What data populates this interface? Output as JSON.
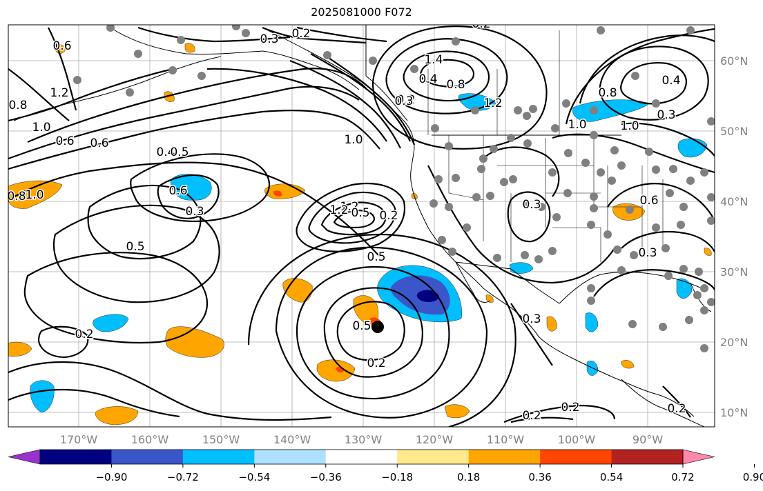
{
  "title": "2025081000 F072",
  "x_axis_labels": [
    "170°W",
    "160°W",
    "150°W",
    "140°W",
    "130°W",
    "120°W",
    "110°W",
    "100°W",
    "90°W"
  ],
  "y_axis_labels": [
    "60°N",
    "50°N",
    "40°N",
    "30°N",
    "20°N",
    "10°N"
  ],
  "colorbar": {
    "tick_labels": [
      "−0.90",
      "−0.72",
      "−0.54",
      "−0.36",
      "−0.18",
      "0.18",
      "0.36",
      "0.54",
      "0.72",
      "0.90"
    ],
    "colors": [
      "#9932cc",
      "#000080",
      "#3a56c8",
      "#00bfff",
      "#b0e0ff",
      "#ffffff",
      "#ffe98a",
      "#ffa500",
      "#ff4500",
      "#b22222",
      "#ff88aa"
    ]
  },
  "contour_labels": [
    {
      "text": "0.3"
    },
    {
      "text": "0.2"
    },
    {
      "text": "0.2"
    },
    {
      "text": "0.6"
    },
    {
      "text": "0.8"
    },
    {
      "text": "1.2"
    },
    {
      "text": "1.0"
    },
    {
      "text": "0.4"
    },
    {
      "text": "0.5"
    },
    {
      "text": "0.3"
    },
    {
      "text": "0.2"
    },
    {
      "text": "0.6"
    },
    {
      "text": "0.8"
    },
    {
      "text": "1.0"
    },
    {
      "text": "1.2"
    },
    {
      "text": "0.5"
    },
    {
      "text": "0.2"
    },
    {
      "text": "0.4"
    },
    {
      "text": "0.8"
    },
    {
      "text": "1.2"
    },
    {
      "text": "1.0"
    },
    {
      "text": "1.0"
    },
    {
      "text": "0.8"
    },
    {
      "text": "0.4"
    },
    {
      "text": "0.6"
    },
    {
      "text": "0.6"
    },
    {
      "text": "0.5"
    },
    {
      "text": "1.0"
    },
    {
      "text": "1.4"
    },
    {
      "text": "1.2"
    },
    {
      "text": "0.5"
    },
    {
      "text": "0.2"
    },
    {
      "text": "0.3"
    },
    {
      "text": "0.3"
    },
    {
      "text": "0.3"
    },
    {
      "text": "0.6"
    },
    {
      "text": "0.5"
    },
    {
      "text": "0.2"
    },
    {
      "text": "0.3"
    },
    {
      "text": "0.2"
    },
    {
      "text": "0.2"
    },
    {
      "text": "0.2"
    },
    {
      "text": "0.3"
    }
  ]
}
